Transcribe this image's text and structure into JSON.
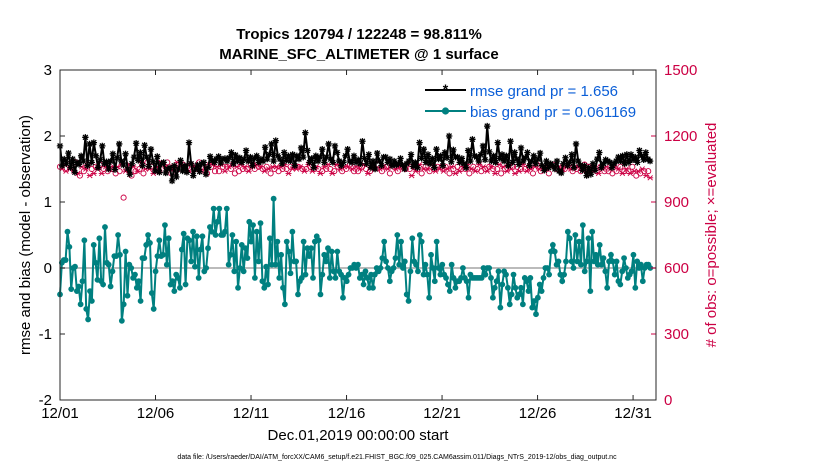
{
  "chart_data": {
    "type": "line",
    "title_line1": "Tropics 120794 / 122248 = 98.811%",
    "title_line2": "MARINE_SFC_ALTIMETER @ 1 surface",
    "xlabel": "Dec.01,2019 00:00:00 start",
    "ylabel_left": "rmse and bias (model - observation)",
    "ylabel_right": "# of obs: o=possible; ×=evaluated",
    "footnote": "data file: /Users/raeder/DAI/ATM_forcXX/CAM6_setup/f.e21.FHIST_BGC.f09_025.CAM6assim.011/Diags_NTrS_2019-12/obs_diag_output.nc",
    "xlim": [
      0,
      31.2
    ],
    "ylim_left": [
      -2,
      3
    ],
    "ylim_right": [
      0,
      1500
    ],
    "x_ticks": [
      0,
      5,
      10,
      15,
      20,
      25,
      30
    ],
    "x_tick_labels": [
      "12/01",
      "12/06",
      "12/11",
      "12/16",
      "12/21",
      "12/26",
      "12/31"
    ],
    "y_ticks_left": [
      -2,
      -1,
      0,
      1,
      2,
      3
    ],
    "y_tick_labels_left": [
      "-2",
      "-1",
      "0",
      "1",
      "2",
      "3"
    ],
    "y_ticks_right": [
      0,
      300,
      600,
      900,
      1200,
      1500
    ],
    "y_tick_labels_right": [
      "0",
      "300",
      "600",
      "900",
      "1200",
      "1500"
    ],
    "zero_line": 0,
    "legend": {
      "placement": "top-right",
      "entries": [
        "rmse grand pr = 1.656",
        "bias grand pr = 0.061169"
      ]
    },
    "colors": {
      "rmse": "#000000",
      "bias": "#008080",
      "obs": "#cc0044",
      "legend_text": "#0a5ed7",
      "zero_line": "#bbbbbb"
    },
    "series": [
      {
        "name": "rmse",
        "axis": "left",
        "values": [
          1.85,
          1.55,
          1.65,
          1.58,
          1.74,
          1.52,
          1.65,
          1.45,
          1.6,
          1.57,
          1.7,
          1.62,
          1.98,
          1.55,
          1.88,
          1.6,
          1.9,
          1.7,
          1.52,
          1.64,
          1.85,
          1.58,
          1.61,
          1.5,
          1.62,
          1.73,
          1.49,
          1.67,
          1.88,
          1.62,
          1.56,
          1.73,
          1.5,
          1.42,
          1.58,
          1.68,
          1.89,
          1.63,
          1.75,
          1.55,
          1.86,
          1.68,
          1.54,
          1.8,
          1.61,
          1.47,
          1.69,
          1.45,
          1.58,
          1.6,
          1.44,
          1.5,
          1.52,
          1.32,
          1.55,
          1.38,
          1.5,
          1.63,
          1.47,
          1.55,
          1.45,
          1.9,
          1.58,
          1.4,
          1.5,
          1.56,
          1.46,
          1.58,
          1.6,
          1.42,
          1.52,
          1.69,
          1.63,
          1.6,
          1.65,
          1.69,
          1.59,
          1.65,
          1.66,
          1.62,
          1.67,
          1.75,
          1.58,
          1.71,
          1.62,
          1.67,
          1.6,
          1.65,
          1.78,
          1.62,
          1.68,
          1.55,
          1.66,
          1.7,
          1.6,
          1.65,
          1.62,
          1.83,
          1.65,
          1.72,
          1.88,
          1.62,
          1.93,
          1.7,
          1.65,
          1.58,
          1.75,
          1.63,
          1.7,
          1.62,
          1.72,
          1.55,
          1.7,
          1.65,
          1.82,
          1.68,
          2.05,
          1.78,
          1.6,
          1.66,
          1.52,
          1.7,
          1.62,
          1.68,
          1.8,
          1.6,
          1.68,
          1.88,
          1.65,
          1.6,
          1.85,
          1.75,
          1.62,
          1.55,
          1.6,
          1.7,
          1.8,
          1.62,
          1.6,
          1.7,
          1.6,
          1.64,
          1.58,
          1.92,
          1.66,
          1.58,
          1.72,
          1.52,
          1.62,
          1.5,
          1.74,
          1.62,
          1.55,
          1.68,
          1.68,
          1.6,
          1.65,
          1.55,
          1.62,
          1.56,
          1.58,
          1.66,
          1.56,
          1.5,
          1.58,
          1.62,
          1.72,
          1.54,
          1.6,
          1.52,
          1.9,
          1.66,
          1.8,
          1.6,
          1.72,
          1.58,
          1.66,
          1.52,
          1.8,
          1.65,
          1.7,
          1.55,
          1.75,
          1.67,
          2.0,
          1.61,
          1.79,
          1.68,
          1.68,
          1.6,
          1.66,
          1.58,
          1.52,
          1.78,
          1.62,
          1.95,
          1.7,
          1.68,
          1.62,
          1.72,
          1.85,
          1.64,
          2.15,
          1.76,
          1.62,
          1.7,
          1.6,
          1.9,
          1.66,
          1.72,
          1.62,
          1.7,
          1.55,
          1.92,
          1.6,
          1.75,
          1.65,
          1.57,
          1.82,
          1.62,
          1.67,
          1.75,
          1.55,
          1.62,
          1.7,
          1.58,
          1.65,
          1.74,
          1.55,
          1.48,
          1.62,
          1.52,
          1.58,
          1.55,
          1.5,
          1.62,
          1.47,
          1.44,
          1.58,
          1.67,
          1.55,
          1.6,
          1.72,
          1.52,
          1.88,
          1.62,
          1.56,
          1.48,
          1.55,
          1.4,
          1.52,
          1.42,
          1.58,
          1.48,
          1.65,
          1.75,
          1.52,
          1.58,
          1.64,
          1.62,
          1.6,
          1.52,
          1.58,
          1.62,
          1.68,
          1.62,
          1.7,
          1.58,
          1.72,
          1.6,
          1.72,
          1.64,
          1.68,
          1.6,
          1.78,
          1.7,
          1.64,
          1.75,
          1.65,
          1.62
        ]
      },
      {
        "name": "bias",
        "axis": "left",
        "values": [
          -0.4,
          0.08,
          0.12,
          0.12,
          0.55,
          0.32,
          -0.32,
          0.0,
          0.02,
          -0.35,
          -0.28,
          -0.55,
          -0.2,
          0.42,
          -0.62,
          -0.78,
          -0.35,
          -0.5,
          0.35,
          0.08,
          -0.18,
          0.45,
          -0.2,
          -0.25,
          0.62,
          0.08,
          0.05,
          -0.28,
          -0.05,
          0.18,
          0.18,
          0.5,
          0.2,
          -0.8,
          -0.55,
          0.25,
          -0.42,
          0.05,
          0.0,
          -0.15,
          -0.1,
          -0.3,
          -0.2,
          -0.5,
          0.15,
          0.15,
          0.35,
          0.5,
          0.38,
          -0.38,
          -0.62,
          -0.05,
          0.18,
          0.42,
          0.18,
          0.2,
          0.65,
          0.05,
          0.45,
          -0.25,
          -0.2,
          -0.35,
          -0.1,
          -0.15,
          -0.3,
          0.28,
          0.52,
          -0.25,
          0.45,
          0.42,
          0.1,
          0.55,
          0.02,
          0.48,
          -0.15,
          0.28,
          0.48,
          -0.05,
          0.0,
          0.3,
          0.62,
          0.55,
          0.9,
          0.5,
          0.7,
          0.9,
          0.5,
          0.5,
          0.55,
          0.9,
          0.05,
          0.2,
          0.5,
          -0.05,
          0.4,
          -0.3,
          0.0,
          0.35,
          -0.05,
          0.3,
          0.15,
          0.7,
          0.4,
          0.65,
          -0.15,
          0.55,
          0.1,
          0.68,
          -0.2,
          -0.3,
          0.02,
          -0.25,
          0.45,
          0.05,
          1.05,
          0.05,
          0.4,
          -0.15,
          0.2,
          -0.3,
          -0.55,
          0.4,
          0.25,
          -0.08,
          0.55,
          0.1,
          0.1,
          -0.4,
          -0.2,
          -0.15,
          0.4,
          -0.1,
          0.3,
          0.18,
          0.3,
          -0.15,
          0.4,
          0.48,
          0.42,
          -0.4,
          -0.1,
          0.2,
          0.1,
          0.3,
          -0.15,
          0.25,
          -0.05,
          -0.15,
          0.25,
          -0.05,
          -0.1,
          -0.45,
          -0.15,
          -0.2,
          -0.1,
          0.0,
          0.0,
          0.05,
          0.0,
          0.05,
          -0.15,
          -0.1,
          -0.25,
          -0.05,
          -0.15,
          -0.3,
          -0.1,
          -0.3,
          -0.1,
          0.0,
          -0.05,
          0.0,
          0.15,
          0.4,
          0.1,
          0.0,
          -0.2,
          -0.05,
          0.0,
          0.15,
          0.5,
          0.05,
          0.4,
          0.0,
          0.1,
          -0.4,
          -0.5,
          -0.05,
          0.45,
          0.1,
          0.05,
          -0.05,
          0.5,
          0.4,
          -0.1,
          0.05,
          -0.1,
          -0.45,
          0.2,
          0.0,
          -0.2,
          0.4,
          0.0,
          -0.1,
          0.05,
          -0.1,
          -0.15,
          -0.25,
          -0.35,
          0.05,
          -0.15,
          -0.3,
          -0.2,
          -0.2,
          -0.15,
          0.0,
          -0.15,
          -0.2,
          -0.45,
          -0.1,
          -0.15,
          -0.15,
          -0.15,
          -0.15,
          -0.15,
          -0.15,
          0.0,
          -0.1,
          0.0,
          0.0,
          -0.15,
          -0.45,
          -0.3,
          -0.2,
          -0.05,
          -0.6,
          -0.25,
          -0.05,
          -0.1,
          -0.3,
          -0.55,
          -0.4,
          -0.1,
          -0.3,
          -0.45,
          -0.4,
          -0.3,
          -0.55,
          -0.15,
          -0.2,
          -0.35,
          -0.15,
          -0.6,
          -0.5,
          -0.7,
          -0.45,
          -0.25,
          -0.35,
          -0.15,
          0.0,
          0.0,
          -0.1,
          0.25,
          0.35,
          0.25,
          0.05,
          0.1,
          -0.1,
          -0.2,
          -0.1,
          0.1,
          0.55,
          0.45,
          0.1,
          0.0,
          0.5,
          0.1,
          0.4,
          0.05,
          0.65,
          -0.05,
          0.1,
          0.45,
          -0.35,
          0.55,
          0.1,
          0.2,
          0.05,
          0.35,
          0.05,
          0.15,
          -0.05,
          -0.3,
          0.1,
          0.2,
          0.1,
          -0.1,
          0.1,
          -0.2,
          -0.25,
          -0.05,
          0.15,
          0.0,
          -0.15,
          -0.1,
          -0.05,
          0.2,
          -0.3,
          0.1,
          0.0,
          0.05,
          -0.2,
          0.0,
          0.05,
          0.05,
          0.0
        ]
      },
      {
        "name": "obs_count",
        "axis": "right",
        "values": [
          1060,
          1050,
          1080,
          1040,
          1070,
          1050,
          1060,
          1040,
          1080,
          1030,
          1020,
          1060,
          1040,
          1050,
          1070,
          1020,
          1050,
          1030,
          1060,
          1050,
          1070,
          1030,
          1050,
          1060,
          1040,
          1050,
          1050,
          1060,
          1030,
          1060,
          1040,
          1070,
          920,
          1040,
          1050,
          1070,
          1020,
          1060,
          1040,
          1040,
          1050,
          1080,
          1030,
          1050,
          1080,
          1050,
          1060,
          1030,
          1050,
          1060,
          1040,
          1080,
          1070,
          1060,
          1080,
          1060,
          1030,
          1050,
          1060,
          1080,
          1050,
          1070,
          1070,
          1050,
          1060,
          1040,
          1070,
          1060,
          1050,
          1050,
          1080,
          1040,
          1060,
          1050,
          1030,
          1070,
          1060,
          1070,
          1040,
          1060,
          1040,
          1070,
          1060,
          1040,
          1060,
          1060,
          1050,
          1070,
          1030,
          1060,
          1040,
          1070,
          1050,
          1060,
          1050,
          1040,
          1070,
          1060,
          1050,
          1070,
          1060,
          1060,
          1050,
          1040,
          1060,
          1050,
          1030,
          1060,
          1050,
          1060,
          1040,
          1060,
          1050,
          1070,
          1050,
          1030,
          1060,
          1050,
          1060,
          1050,
          1060,
          1060,
          1050,
          1040,
          1050,
          1070,
          1060,
          1040,
          1050,
          1060,
          1050,
          1030,
          1040,
          1060,
          1050,
          1070,
          1050,
          1030,
          1040,
          1070,
          1060,
          1050,
          1040,
          1060,
          1050,
          1060,
          1070,
          1050,
          1040,
          1060,
          1040,
          1050,
          1060,
          1070,
          1050,
          1030,
          1040,
          1060,
          1060,
          1050,
          1070,
          1050,
          1040,
          1060,
          1060,
          1050,
          1030,
          1070,
          1060,
          1050,
          1040,
          1060,
          1060,
          1050,
          1050,
          1070,
          1050,
          1020,
          1060,
          1040,
          1050,
          1070,
          1030,
          1050,
          1060,
          1050,
          1040,
          1070,
          1050,
          1040,
          1060,
          1050,
          1060,
          1040,
          1060,
          1050,
          1030,
          1060,
          1050,
          1030,
          1060,
          1040,
          1050,
          1060,
          1050,
          1070,
          1030,
          1050,
          1060,
          1040,
          1050,
          1070,
          1040,
          1060,
          1050,
          1040,
          1060,
          1060,
          1050,
          1030,
          1050,
          1070,
          1030,
          1060,
          1050,
          1040,
          1070,
          1050,
          1060,
          1030,
          1060,
          1040,
          1050,
          1070,
          1050,
          1040,
          1060,
          1050,
          1030,
          1060,
          1070,
          1050,
          1040,
          1060,
          1050,
          1050,
          1030,
          1060,
          1070,
          1050,
          1050,
          1060,
          1040,
          1050,
          1050,
          1060,
          1070,
          1050,
          1040,
          1060,
          1050,
          1060,
          1040,
          1050,
          1070,
          1040,
          1060,
          1050,
          1050,
          1060,
          1040,
          1030,
          1060,
          1050,
          1040,
          1060,
          1040,
          1050,
          1030,
          1060,
          1040,
          1050,
          1060,
          1030,
          1040,
          1050,
          1040,
          1030,
          1060,
          1040,
          1020,
          1040,
          1030,
          1050,
          1040,
          1020,
          1040,
          1010
        ]
      }
    ]
  }
}
